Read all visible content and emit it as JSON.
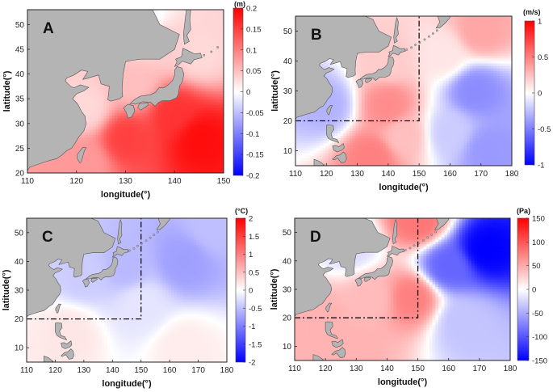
{
  "chart_data": [
    {
      "type": "heatmap",
      "panel_label": "A",
      "xlabel": "longitude(°)",
      "ylabel": "latitude(°)",
      "xlim": [
        110,
        150
      ],
      "ylim": [
        20,
        53
      ],
      "xticks": [
        "110",
        "120",
        "130",
        "140",
        "150"
      ],
      "yticks": [
        "20",
        "25",
        "30",
        "35",
        "40",
        "45",
        "50"
      ],
      "colorbar": {
        "unit": "(m)",
        "range": [
          -0.2,
          0.2
        ],
        "ticks": [
          "0.2",
          "0.15",
          "0.1",
          "0.05",
          "0",
          "-0.05",
          "-0.1",
          "-0.15",
          "-0.2"
        ]
      },
      "regions": [
        {
          "lon": 145,
          "lat": 27,
          "value": 0.19
        },
        {
          "lon": 140,
          "lat": 32,
          "value": 0.16
        },
        {
          "lon": 130,
          "lat": 27,
          "value": 0.15
        },
        {
          "lon": 122,
          "lat": 22,
          "value": 0.08
        },
        {
          "lon": 132,
          "lat": 38,
          "value": 0.05
        },
        {
          "lon": 122,
          "lat": 33,
          "value": 0.03
        },
        {
          "lon": 145,
          "lat": 44,
          "value": 0.03
        },
        {
          "lon": 137,
          "lat": 46,
          "value": 0.04
        },
        {
          "lon": 133,
          "lat": 50,
          "value": -0.02
        }
      ],
      "dashed_box": null
    },
    {
      "type": "heatmap",
      "panel_label": "B",
      "xlabel": "longitude(°)",
      "ylabel": "latitude(°)",
      "xlim": [
        110,
        180
      ],
      "ylim": [
        5,
        55
      ],
      "xticks": [
        "110",
        "120",
        "130",
        "140",
        "150",
        "160",
        "170",
        "180"
      ],
      "yticks": [
        "10",
        "20",
        "30",
        "40",
        "50"
      ],
      "colorbar": {
        "unit": "(m/s)",
        "range": [
          -1,
          1
        ],
        "ticks": [
          "1",
          "0.5",
          "0",
          "-0.5",
          "-1"
        ]
      },
      "regions": [
        {
          "lon": 140,
          "lat": 25,
          "value": 0.45
        },
        {
          "lon": 135,
          "lat": 8,
          "value": 0.5
        },
        {
          "lon": 145,
          "lat": 15,
          "value": 0.25
        },
        {
          "lon": 168,
          "lat": 30,
          "value": -0.45
        },
        {
          "lon": 172,
          "lat": 10,
          "value": -0.4
        },
        {
          "lon": 160,
          "lat": 16,
          "value": -0.2
        },
        {
          "lon": 170,
          "lat": 50,
          "value": 0.35
        },
        {
          "lon": 158,
          "lat": 42,
          "value": 0.1
        },
        {
          "lon": 120,
          "lat": 25,
          "value": -0.3
        },
        {
          "lon": 140,
          "lat": 40,
          "value": 0.2
        }
      ],
      "dashed_box": {
        "lon": [
          110,
          150
        ],
        "lat": [
          20,
          55
        ]
      }
    },
    {
      "type": "heatmap",
      "panel_label": "C",
      "xlabel": "longitude(°)",
      "ylabel": "latitude(°)",
      "xlim": [
        110,
        180
      ],
      "ylim": [
        5,
        55
      ],
      "xticks": [
        "110",
        "120",
        "130",
        "140",
        "150",
        "160",
        "170",
        "180"
      ],
      "yticks": [
        "10",
        "20",
        "30",
        "40",
        "50"
      ],
      "colorbar": {
        "unit": "(°C)",
        "range": [
          -2,
          2
        ],
        "ticks": [
          "2",
          "1.5",
          "1",
          "0.5",
          "0",
          "-0.5",
          "-1",
          "-1.5",
          "-2"
        ]
      },
      "regions": [
        {
          "lon": 165,
          "lat": 40,
          "value": -0.75
        },
        {
          "lon": 145,
          "lat": 38,
          "value": -0.55
        },
        {
          "lon": 130,
          "lat": 35,
          "value": -0.4
        },
        {
          "lon": 150,
          "lat": 25,
          "value": -0.2
        },
        {
          "lon": 125,
          "lat": 15,
          "value": 0.2
        },
        {
          "lon": 165,
          "lat": 10,
          "value": 0.15
        },
        {
          "lon": 175,
          "lat": 52,
          "value": -0.5
        }
      ],
      "dashed_box": {
        "lon": [
          110,
          150
        ],
        "lat": [
          20,
          55
        ]
      }
    },
    {
      "type": "heatmap",
      "panel_label": "D",
      "xlabel": "longitude(°)",
      "ylabel": "latitude(°)",
      "xlim": [
        110,
        180
      ],
      "ylim": [
        5,
        55
      ],
      "xticks": [
        "110",
        "120",
        "130",
        "140",
        "150",
        "160",
        "170",
        "180"
      ],
      "yticks": [
        "10",
        "20",
        "30",
        "40",
        "50"
      ],
      "colorbar": {
        "unit": "(Pa)",
        "range": [
          -150,
          150
        ],
        "ticks": [
          "150",
          "100",
          "50",
          "0",
          "-50",
          "-100",
          "-150"
        ]
      },
      "regions": [
        {
          "lon": 172,
          "lat": 44,
          "value": -150
        },
        {
          "lon": 160,
          "lat": 38,
          "value": -90
        },
        {
          "lon": 148,
          "lat": 27,
          "value": 75
        },
        {
          "lon": 135,
          "lat": 27,
          "value": 40
        },
        {
          "lon": 118,
          "lat": 20,
          "value": 45
        },
        {
          "lon": 128,
          "lat": 8,
          "value": 45
        },
        {
          "lon": 165,
          "lat": 18,
          "value": -35
        },
        {
          "lon": 150,
          "lat": 54,
          "value": 80
        },
        {
          "lon": 128,
          "lat": 45,
          "value": -20
        }
      ],
      "dashed_box": {
        "lon": [
          110,
          150
        ],
        "lat": [
          20,
          55
        ]
      }
    }
  ]
}
